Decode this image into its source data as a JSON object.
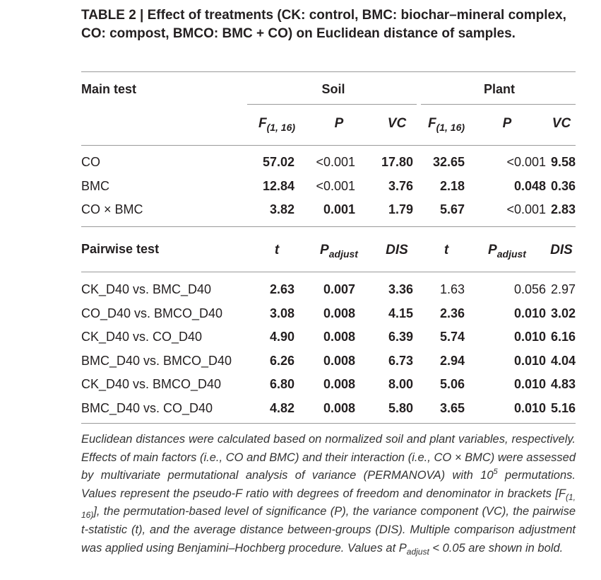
{
  "title": "TABLE 2 | Effect of treatments (CK: control, BMC: biochar–mineral complex, CO: compost, BMCO: BMC + CO) on Euclidean distance of samples.",
  "table": {
    "main_header": "Main test",
    "groups": [
      "Soil",
      "Plant"
    ],
    "main_columns": [
      {
        "main": "F",
        "sub": "(1, 16)"
      },
      {
        "main": "P"
      },
      {
        "main": "VC"
      },
      {
        "main": "F",
        "sub": "(1, 16)"
      },
      {
        "main": "P"
      },
      {
        "main": "VC"
      }
    ],
    "main_rows": [
      {
        "label": "CO",
        "cells": [
          {
            "text": "57.02",
            "bold": true
          },
          {
            "text": "<0.001",
            "bold": false
          },
          {
            "text": "17.80",
            "bold": true
          },
          {
            "text": "32.65",
            "bold": true
          },
          {
            "text": "<0.001",
            "bold": false
          },
          {
            "text": "9.58",
            "bold": true
          }
        ]
      },
      {
        "label": "BMC",
        "cells": [
          {
            "text": "12.84",
            "bold": true
          },
          {
            "text": "<0.001",
            "bold": false
          },
          {
            "text": "3.76",
            "bold": true
          },
          {
            "text": "2.18",
            "bold": true
          },
          {
            "text": "0.048",
            "bold": true
          },
          {
            "text": "0.36",
            "bold": true
          }
        ]
      },
      {
        "label": "CO × BMC",
        "cells": [
          {
            "text": "3.82",
            "bold": true
          },
          {
            "text": "0.001",
            "bold": true
          },
          {
            "text": "1.79",
            "bold": true
          },
          {
            "text": "5.67",
            "bold": true
          },
          {
            "text": "<0.001",
            "bold": false
          },
          {
            "text": "2.83",
            "bold": true
          }
        ]
      }
    ],
    "pairwise_header": "Pairwise test",
    "pairwise_columns": [
      {
        "main": "t"
      },
      {
        "main": "P",
        "sub": "adjust"
      },
      {
        "main": "DIS"
      },
      {
        "main": "t"
      },
      {
        "main": "P",
        "sub": "adjust"
      },
      {
        "main": "DIS"
      }
    ],
    "pairwise_rows": [
      {
        "label": "CK_D40 vs. BMC_D40",
        "cells": [
          {
            "text": "2.63",
            "bold": true
          },
          {
            "text": "0.007",
            "bold": true
          },
          {
            "text": "3.36",
            "bold": true
          },
          {
            "text": "1.63",
            "bold": false
          },
          {
            "text": "0.056",
            "bold": false
          },
          {
            "text": "2.97",
            "bold": false
          }
        ]
      },
      {
        "label": "CO_D40 vs. BMCO_D40",
        "cells": [
          {
            "text": "3.08",
            "bold": true
          },
          {
            "text": "0.008",
            "bold": true
          },
          {
            "text": "4.15",
            "bold": true
          },
          {
            "text": "2.36",
            "bold": true
          },
          {
            "text": "0.010",
            "bold": true
          },
          {
            "text": "3.02",
            "bold": true
          }
        ]
      },
      {
        "label": "CK_D40 vs. CO_D40",
        "cells": [
          {
            "text": "4.90",
            "bold": true
          },
          {
            "text": "0.008",
            "bold": true
          },
          {
            "text": "6.39",
            "bold": true
          },
          {
            "text": "5.74",
            "bold": true
          },
          {
            "text": "0.010",
            "bold": true
          },
          {
            "text": "6.16",
            "bold": true
          }
        ]
      },
      {
        "label": "BMC_D40 vs. BMCO_D40",
        "cells": [
          {
            "text": "6.26",
            "bold": true
          },
          {
            "text": "0.008",
            "bold": true
          },
          {
            "text": "6.73",
            "bold": true
          },
          {
            "text": "2.94",
            "bold": true
          },
          {
            "text": "0.010",
            "bold": true
          },
          {
            "text": "4.04",
            "bold": true
          }
        ]
      },
      {
        "label": "CK_D40 vs. BMCO_D40",
        "cells": [
          {
            "text": "6.80",
            "bold": true
          },
          {
            "text": "0.008",
            "bold": true
          },
          {
            "text": "8.00",
            "bold": true
          },
          {
            "text": "5.06",
            "bold": true
          },
          {
            "text": "0.010",
            "bold": true
          },
          {
            "text": "4.83",
            "bold": true
          }
        ]
      },
      {
        "label": "BMC_D40 vs. CO_D40",
        "cells": [
          {
            "text": "4.82",
            "bold": true
          },
          {
            "text": "0.008",
            "bold": true
          },
          {
            "text": "5.80",
            "bold": true
          },
          {
            "text": "3.65",
            "bold": true
          },
          {
            "text": "0.010",
            "bold": true
          },
          {
            "text": "5.16",
            "bold": true
          }
        ]
      }
    ]
  },
  "footnote": [
    {
      "text": "Euclidean distances were calculated based on normalized soil and plant variables, respectively. Effects of main factors (i.e., CO and BMC) and their interaction (i.e., CO × BMC) were assessed by multivariate permutational analysis of variance (PERMANOVA) with 10"
    },
    {
      "text": "5",
      "script": "sup"
    },
    {
      "text": " permutations. Values represent the pseudo-F ratio with degrees of freedom and denominator in brackets [F"
    },
    {
      "text": "(1, 16)",
      "script": "sub"
    },
    {
      "text": "], the permutation-based level of significance (P), the variance component (VC), the pairwise t-statistic (t), and the average distance between-groups (DIS). Multiple comparison adjustment was applied using Benjamini–Hochberg procedure. Values at P"
    },
    {
      "text": "adjust",
      "script": "sub"
    },
    {
      "text": " < 0.05 are shown in bold."
    }
  ]
}
